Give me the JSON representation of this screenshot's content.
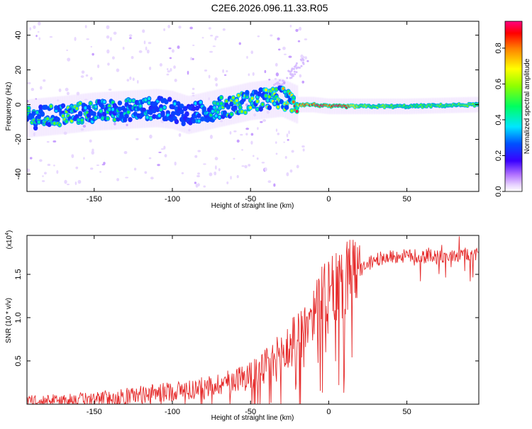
{
  "title": "C2E6.2026.096.11.33.R05",
  "chart_data": [
    {
      "type": "heatmap",
      "title": "C2E6.2026.096.11.33.R05",
      "xlabel": "Height of straight line (km)",
      "ylabel": "Frequency (Hz)",
      "xlim": [
        -193,
        96
      ],
      "ylim": [
        -50,
        48
      ],
      "xticks": [
        -150,
        -100,
        -50,
        0,
        50
      ],
      "yticks": [
        -40,
        -20,
        0,
        20,
        40
      ],
      "colorbar": {
        "label": "Normalized spectral amplitude",
        "range": [
          0,
          0.95
        ],
        "ticks": [
          0.0,
          0.2,
          0.4,
          0.6,
          0.8
        ]
      },
      "ridge": {
        "x": [
          -193,
          -170,
          -150,
          -130,
          -110,
          -100,
          -90,
          -80,
          -70,
          -60,
          -50,
          -40,
          -30,
          -25,
          -20,
          -10,
          0,
          10,
          20,
          50,
          95
        ],
        "frequency_hz": [
          -8,
          -6,
          -4,
          -3,
          -2,
          -3,
          -6,
          -4,
          -2,
          0,
          2,
          3,
          4,
          2,
          0,
          0,
          -1,
          -1,
          -1,
          -1,
          0
        ],
        "peak_amplitude": [
          0.45,
          0.5,
          0.45,
          0.4,
          0.35,
          0.3,
          0.3,
          0.35,
          0.45,
          0.5,
          0.55,
          0.55,
          0.6,
          0.65,
          0.75,
          0.85,
          0.9,
          0.9,
          0.6,
          0.5,
          0.55
        ]
      }
    },
    {
      "type": "line",
      "xlabel": "Height of straight line (km)",
      "ylabel": "SNR (10 * v/v)",
      "yscale_note": "(x10",
      "yscale_exp": "4",
      "xlim": [
        -193,
        96
      ],
      "ylim": [
        0,
        1.95
      ],
      "xticks": [
        -150,
        -100,
        -50,
        0,
        50
      ],
      "yticks": [
        0.5,
        1.0,
        1.5
      ],
      "series": [
        {
          "name": "SNR",
          "color": "#e52b2b",
          "x": [
            -193,
            -180,
            -160,
            -140,
            -120,
            -100,
            -90,
            -80,
            -70,
            -60,
            -50,
            -45,
            -40,
            -35,
            -30,
            -25,
            -20,
            -15,
            -10,
            -5,
            0,
            5,
            10,
            15,
            20,
            25,
            30,
            35,
            40,
            50,
            60,
            70,
            80,
            90,
            96
          ],
          "y": [
            0.05,
            0.05,
            0.06,
            0.08,
            0.12,
            0.16,
            0.18,
            0.2,
            0.25,
            0.3,
            0.36,
            0.4,
            0.45,
            0.52,
            0.6,
            0.7,
            0.8,
            0.95,
            1.1,
            1.25,
            1.3,
            1.38,
            1.45,
            1.52,
            1.55,
            1.62,
            1.68,
            1.7,
            1.71,
            1.72,
            1.72,
            1.72,
            1.73,
            1.74,
            1.75
          ]
        }
      ]
    }
  ]
}
